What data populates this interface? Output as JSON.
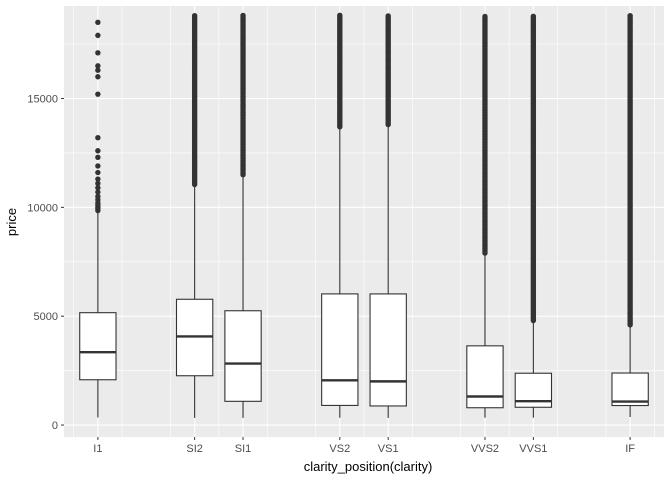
{
  "chart_data": {
    "type": "boxplot",
    "xlabel": "clarity_position(clarity)",
    "ylabel": "price",
    "ylim": [
      -550,
      19250
    ],
    "y_ticks": [
      0,
      5000,
      10000,
      15000
    ],
    "x_positions_by_category": {
      "I1": 1,
      "SI2": 3,
      "SI1": 4,
      "VS2": 6,
      "VS1": 7,
      "VVS2": 9,
      "VVS1": 10,
      "IF": 12
    },
    "xlim": [
      0.3,
      12.7
    ],
    "grid": true,
    "panel_background": "#ebebeb",
    "grid_color": "#ffffff",
    "box_fill": "#ffffff",
    "line_color": "#333333",
    "boxes": [
      {
        "category": "I1",
        "lower_whisker": 345,
        "q1": 2080,
        "median": 3344,
        "q3": 5161,
        "upper_whisker": 9800,
        "outliers": [
          9850,
          9950,
          10000,
          10100,
          10200,
          10350,
          10500,
          10700,
          10900,
          11100,
          11300,
          11600,
          11900,
          12300,
          12600,
          13200,
          15200,
          16000,
          16300,
          16500,
          17100,
          17900,
          18500
        ]
      },
      {
        "category": "SI2",
        "lower_whisker": 326,
        "q1": 2264,
        "median": 4072,
        "q3": 5777,
        "upper_whisker": 11000,
        "outlier_band": [
          11050,
          18804
        ]
      },
      {
        "category": "SI1",
        "lower_whisker": 326,
        "q1": 1089,
        "median": 2822,
        "q3": 5250,
        "upper_whisker": 11480,
        "outlier_band": [
          11500,
          18818
        ]
      },
      {
        "category": "VS2",
        "lower_whisker": 334,
        "q1": 900,
        "median": 2054,
        "q3": 6024,
        "upper_whisker": 13700,
        "outlier_band": [
          13700,
          18823
        ]
      },
      {
        "category": "VS1",
        "lower_whisker": 327,
        "q1": 876,
        "median": 2005,
        "q3": 6023,
        "upper_whisker": 13800,
        "outlier_band": [
          13800,
          18795
        ]
      },
      {
        "category": "VVS2",
        "lower_whisker": 336,
        "q1": 794,
        "median": 1311,
        "q3": 3638,
        "upper_whisker": 7900,
        "outlier_band": [
          7900,
          18768
        ]
      },
      {
        "category": "VVS1",
        "lower_whisker": 336,
        "q1": 816,
        "median": 1093,
        "q3": 2379,
        "upper_whisker": 4800,
        "outlier_band": [
          4800,
          18777
        ]
      },
      {
        "category": "IF",
        "lower_whisker": 369,
        "q1": 895,
        "median": 1080,
        "q3": 2388,
        "upper_whisker": 4600,
        "outlier_band": [
          4600,
          18806
        ]
      }
    ]
  }
}
